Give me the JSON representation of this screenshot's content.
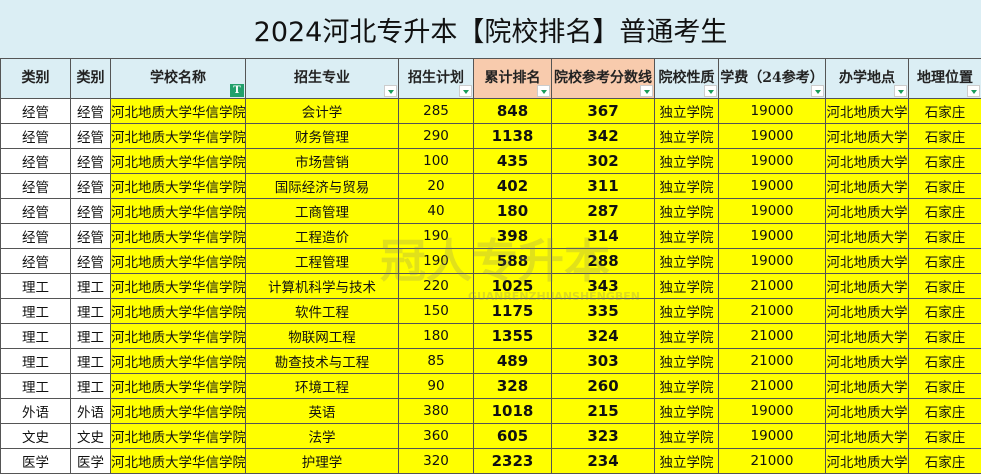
{
  "title": "2024河北专升本【院校排名】普通考生",
  "headers": [
    "类别",
    "类别",
    "学校名称",
    "招生专业",
    "招生计划",
    "累计排名",
    "院校参考分数线",
    "院校性质",
    "学费（24参考）",
    "办学地点",
    "地理位置"
  ],
  "rows": [
    [
      "经管",
      "经管",
      "河北地质大学华信学院",
      "会计学",
      "285",
      "848",
      "367",
      "独立学院",
      "19000",
      "河北地质大学",
      "石家庄"
    ],
    [
      "经管",
      "经管",
      "河北地质大学华信学院",
      "财务管理",
      "290",
      "1138",
      "342",
      "独立学院",
      "19000",
      "河北地质大学",
      "石家庄"
    ],
    [
      "经管",
      "经管",
      "河北地质大学华信学院",
      "市场营销",
      "100",
      "435",
      "302",
      "独立学院",
      "19000",
      "河北地质大学",
      "石家庄"
    ],
    [
      "经管",
      "经管",
      "河北地质大学华信学院",
      "国际经济与贸易",
      "20",
      "402",
      "311",
      "独立学院",
      "19000",
      "河北地质大学",
      "石家庄"
    ],
    [
      "经管",
      "经管",
      "河北地质大学华信学院",
      "工商管理",
      "40",
      "180",
      "287",
      "独立学院",
      "19000",
      "河北地质大学",
      "石家庄"
    ],
    [
      "经管",
      "经管",
      "河北地质大学华信学院",
      "工程造价",
      "190",
      "398",
      "314",
      "独立学院",
      "19000",
      "河北地质大学",
      "石家庄"
    ],
    [
      "经管",
      "经管",
      "河北地质大学华信学院",
      "工程管理",
      "190",
      "588",
      "288",
      "独立学院",
      "19000",
      "河北地质大学",
      "石家庄"
    ],
    [
      "理工",
      "理工",
      "河北地质大学华信学院",
      "计算机科学与技术",
      "220",
      "1025",
      "343",
      "独立学院",
      "21000",
      "河北地质大学",
      "石家庄"
    ],
    [
      "理工",
      "理工",
      "河北地质大学华信学院",
      "软件工程",
      "150",
      "1175",
      "335",
      "独立学院",
      "21000",
      "河北地质大学",
      "石家庄"
    ],
    [
      "理工",
      "理工",
      "河北地质大学华信学院",
      "物联网工程",
      "180",
      "1355",
      "324",
      "独立学院",
      "21000",
      "河北地质大学",
      "石家庄"
    ],
    [
      "理工",
      "理工",
      "河北地质大学华信学院",
      "勘查技术与工程",
      "85",
      "489",
      "303",
      "独立学院",
      "21000",
      "河北地质大学",
      "石家庄"
    ],
    [
      "理工",
      "理工",
      "河北地质大学华信学院",
      "环境工程",
      "90",
      "328",
      "260",
      "独立学院",
      "21000",
      "河北地质大学",
      "石家庄"
    ],
    [
      "外语",
      "外语",
      "河北地质大学华信学院",
      "英语",
      "380",
      "1018",
      "215",
      "独立学院",
      "19000",
      "河北地质大学",
      "石家庄"
    ],
    [
      "文史",
      "文史",
      "河北地质大学华信学院",
      "法学",
      "360",
      "605",
      "323",
      "独立学院",
      "19000",
      "河北地质大学",
      "石家庄"
    ],
    [
      "医学",
      "医学",
      "河北地质大学华信学院",
      "护理学",
      "320",
      "2323",
      "234",
      "独立学院",
      "21000",
      "河北地质大学",
      "石家庄"
    ]
  ],
  "watermark": {
    "text": "冠人专升本",
    "sub": "GUANRENZHUANSHENGBEN"
  },
  "colors": {
    "header": "#dbeef4",
    "highlight_header": "#f8cbad",
    "cell": "#ffff00"
  }
}
